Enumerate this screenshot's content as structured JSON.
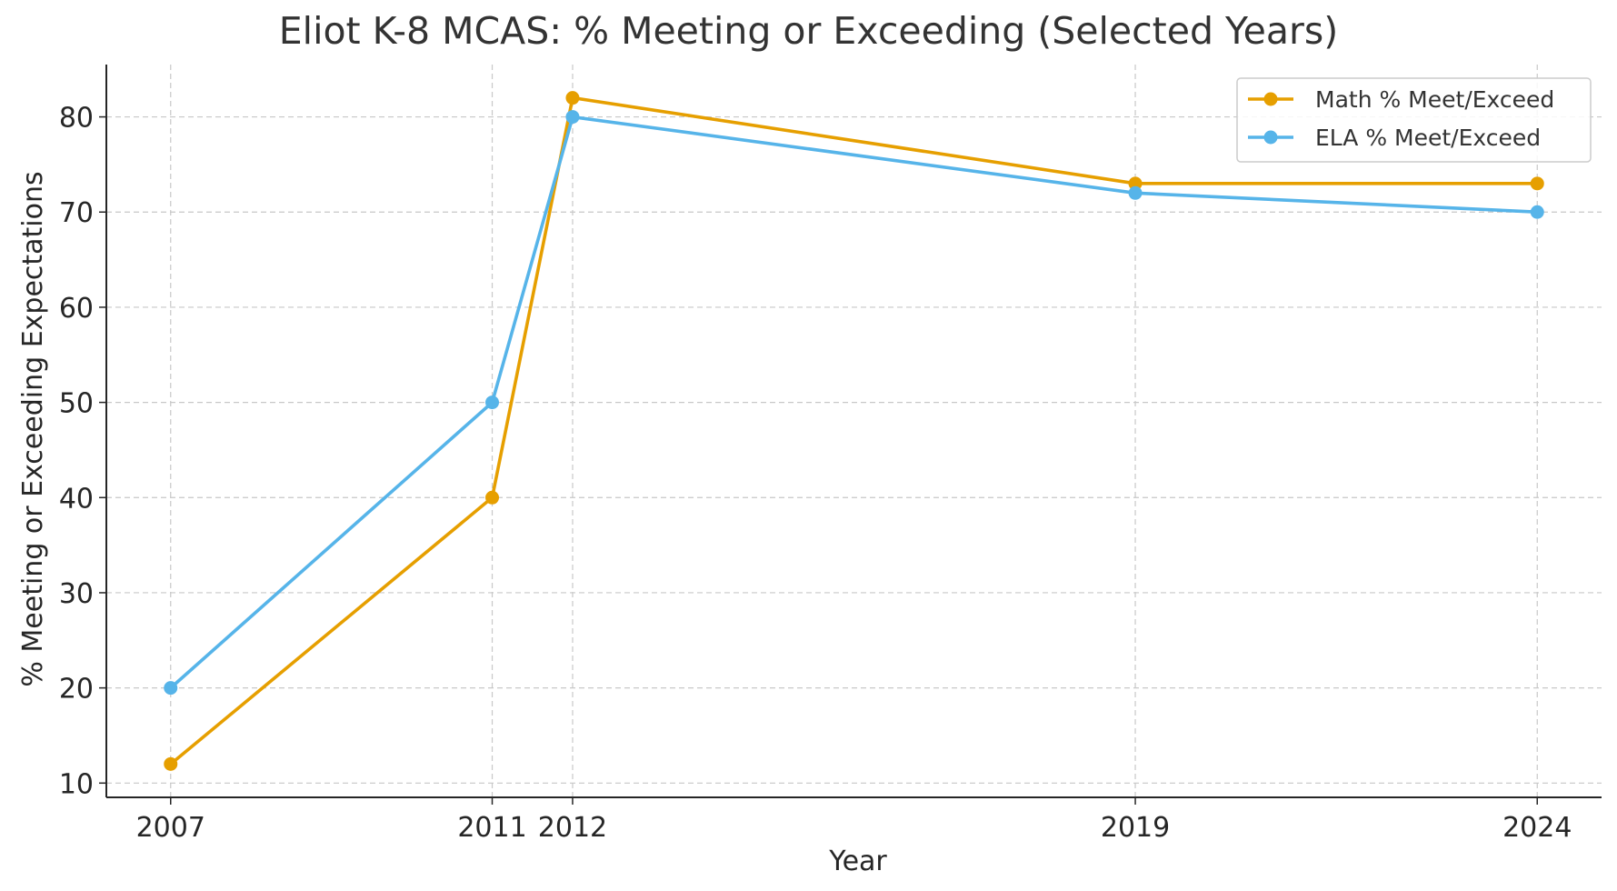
{
  "chart_data": {
    "type": "line",
    "title": "Eliot K-8 MCAS: % Meeting or Exceeding (Selected Years)",
    "xlabel": "Year",
    "ylabel": "% Meeting or Exceeding Expectations",
    "x": [
      2007,
      2011,
      2012,
      2019,
      2024
    ],
    "x_tick_labels": [
      "2007",
      "2011",
      "2012",
      "2019",
      "2024"
    ],
    "xlim": [
      2006.2,
      2024.8
    ],
    "ylim": [
      8.5,
      85.5
    ],
    "y_ticks": [
      10,
      20,
      30,
      40,
      50,
      60,
      70,
      80
    ],
    "grid": true,
    "legend_position": "upper right",
    "series": [
      {
        "name": "Math % Meet/Exceed",
        "color": "#E69F00",
        "values": [
          12,
          40,
          82,
          73,
          73
        ]
      },
      {
        "name": "ELA % Meet/Exceed",
        "color": "#56B4E9",
        "values": [
          20,
          50,
          80,
          72,
          70
        ]
      }
    ]
  }
}
